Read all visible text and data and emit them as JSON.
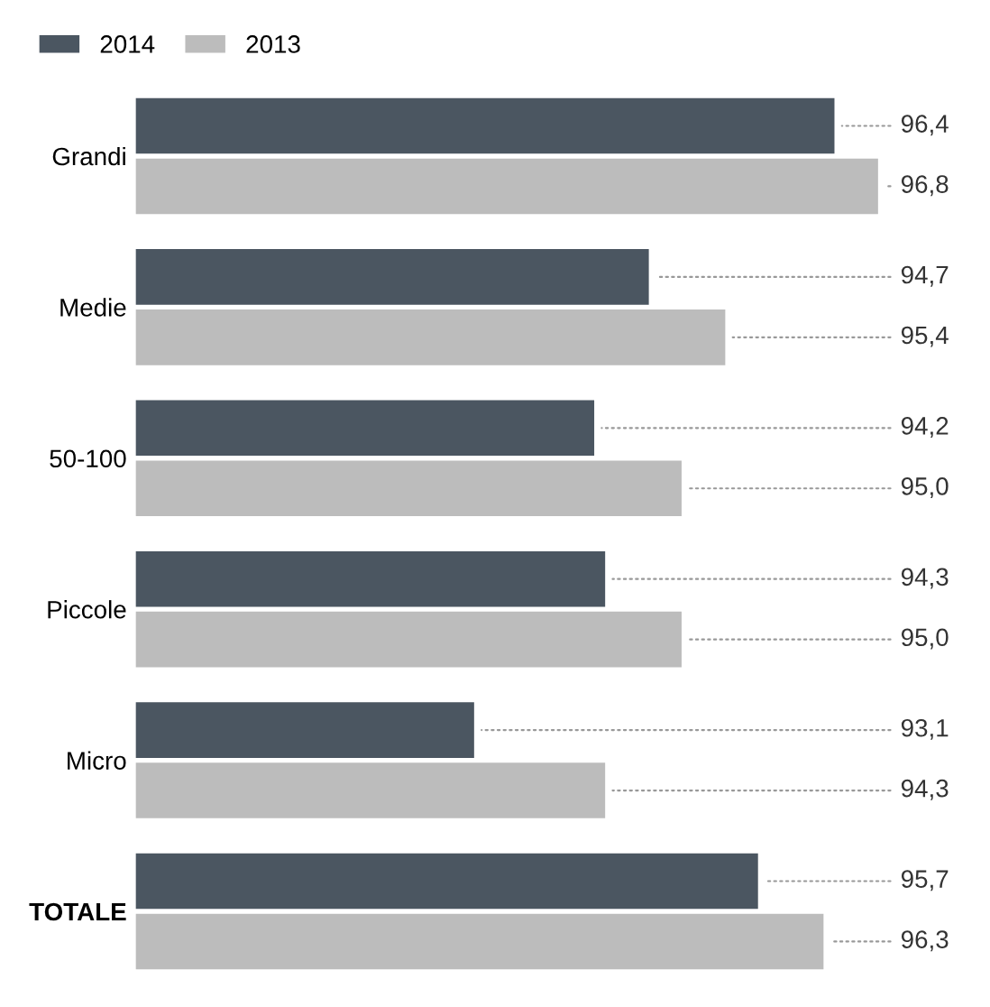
{
  "chart_data": {
    "type": "bar",
    "orientation": "horizontal",
    "categories": [
      "Grandi",
      "Medie",
      "50-100",
      "Piccole",
      "Micro",
      "TOTALE"
    ],
    "series": [
      {
        "name": "2014",
        "color": "#4b5661",
        "values": [
          96.4,
          94.7,
          94.2,
          94.3,
          93.1,
          95.7
        ],
        "value_labels": [
          "96,4",
          "94,7",
          "94,2",
          "94,3",
          "93,1",
          "95,7"
        ]
      },
      {
        "name": "2013",
        "color": "#bcbcbc",
        "values": [
          96.8,
          95.4,
          95.0,
          95.0,
          94.3,
          96.3
        ],
        "value_labels": [
          "96,8",
          "95,4",
          "95,0",
          "95,0",
          "94,3",
          "96,3"
        ]
      }
    ],
    "xlim": [
      90,
      96.8
    ],
    "tick_labels": "y",
    "legend": "top left",
    "grid": false
  }
}
